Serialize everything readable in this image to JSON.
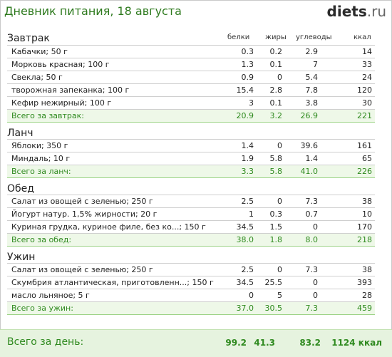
{
  "title": "Дневник питания, 18 августа",
  "logo": {
    "main": "diets",
    "tld": ".ru"
  },
  "columns": {
    "proteins": "белки",
    "fats": "жиры",
    "carbs": "углеводы",
    "kcal": "ккал"
  },
  "sections": [
    {
      "title": "Завтрак",
      "items": [
        {
          "name": "Кабачки; 50 г",
          "p": "0.3",
          "f": "0.2",
          "c": "2.9",
          "k": "14"
        },
        {
          "name": "Морковь красная; 100 г",
          "p": "1.3",
          "f": "0.1",
          "c": "7",
          "k": "33"
        },
        {
          "name": "Свекла; 50 г",
          "p": "0.9",
          "f": "0",
          "c": "5.4",
          "k": "24"
        },
        {
          "name": "творожная запеканка; 100 г",
          "p": "15.4",
          "f": "2.8",
          "c": "7.8",
          "k": "120"
        },
        {
          "name": "Кефир нежирный; 100 г",
          "p": "3",
          "f": "0.1",
          "c": "3.8",
          "k": "30"
        }
      ],
      "total": {
        "name": "Всего за завтрак:",
        "p": "20.9",
        "f": "3.2",
        "c": "26.9",
        "k": "221"
      }
    },
    {
      "title": "Ланч",
      "items": [
        {
          "name": "Яблоки; 350 г",
          "p": "1.4",
          "f": "0",
          "c": "39.6",
          "k": "161"
        },
        {
          "name": "Миндаль; 10 г",
          "p": "1.9",
          "f": "5.8",
          "c": "1.4",
          "k": "65"
        }
      ],
      "total": {
        "name": "Всего за ланч:",
        "p": "3.3",
        "f": "5.8",
        "c": "41.0",
        "k": "226"
      }
    },
    {
      "title": "Обед",
      "items": [
        {
          "name": "Салат из овощей с зеленью; 250 г",
          "p": "2.5",
          "f": "0",
          "c": "7.3",
          "k": "38"
        },
        {
          "name": "Йогурт натур. 1,5% жирности; 20 г",
          "p": "1",
          "f": "0.3",
          "c": "0.7",
          "k": "10"
        },
        {
          "name": "Куриная грудка, куриное филе, без ко...; 150 г",
          "p": "34.5",
          "f": "1.5",
          "c": "0",
          "k": "170"
        }
      ],
      "total": {
        "name": "Всего за обед:",
        "p": "38.0",
        "f": "1.8",
        "c": "8.0",
        "k": "218"
      }
    },
    {
      "title": "Ужин",
      "items": [
        {
          "name": "Салат из овощей с зеленью; 250 г",
          "p": "2.5",
          "f": "0",
          "c": "7.3",
          "k": "38"
        },
        {
          "name": "Скумбрия атлантическая, приготовленн...; 150 г",
          "p": "34.5",
          "f": "25.5",
          "c": "0",
          "k": "393"
        },
        {
          "name": "масло льняное; 5 г",
          "p": "0",
          "f": "5",
          "c": "0",
          "k": "28"
        }
      ],
      "total": {
        "name": "Всего за ужин:",
        "p": "37.0",
        "f": "30.5",
        "c": "7.3",
        "k": "459"
      }
    }
  ],
  "day": {
    "label": "Всего за день:",
    "p": "99.2",
    "f": "41.3",
    "c": "83.2",
    "k": "1124 ккал"
  }
}
